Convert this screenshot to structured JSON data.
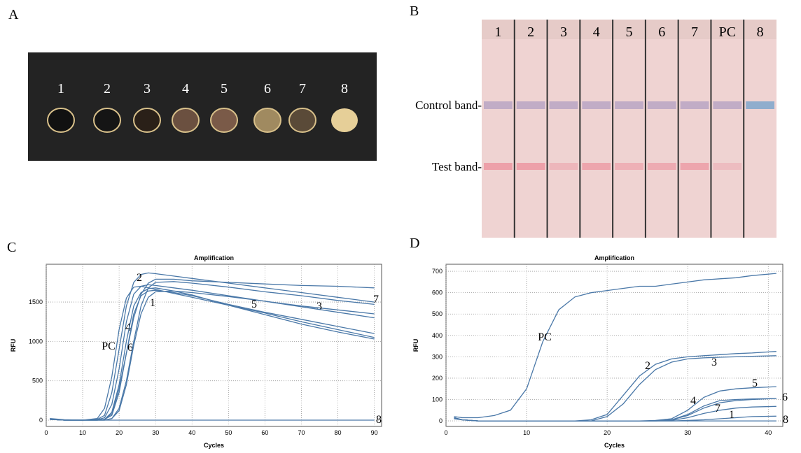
{
  "panel_labels": [
    "A",
    "B",
    "C",
    "D"
  ],
  "photo_a": {
    "seeds": [
      "1",
      "2",
      "3",
      "4",
      "5",
      "6",
      "7",
      "8"
    ]
  },
  "photo_b": {
    "lanes": [
      "1",
      "2",
      "3",
      "4",
      "5",
      "6",
      "7",
      "PC",
      "8"
    ],
    "bands": [
      "Control band-",
      "Test band-"
    ]
  },
  "chart_data": [
    {
      "type": "line",
      "title": "Amplification",
      "x_label": "Cycles",
      "y_label": "RFU",
      "color": "#4a78a8",
      "grid": true,
      "xlim": [
        0,
        92
      ],
      "ylim": [
        -80,
        1980
      ],
      "xticks": [
        0,
        10,
        20,
        30,
        40,
        50,
        60,
        70,
        80,
        90
      ],
      "yticks": [
        0,
        500,
        1000,
        1500
      ],
      "x": [
        1,
        5,
        10,
        14,
        16,
        18,
        20,
        22,
        24,
        26,
        28,
        30,
        35,
        40,
        50,
        60,
        70,
        80,
        90
      ],
      "series": [
        {
          "name": "PC",
          "values": [
            20,
            5,
            0,
            20,
            150,
            550,
            1150,
            1550,
            1690,
            1700,
            1680,
            1660,
            1610,
            1560,
            1460,
            1360,
            1250,
            1150,
            1050
          ]
        },
        {
          "name": "1",
          "values": [
            10,
            0,
            0,
            0,
            0,
            20,
            120,
            450,
            950,
            1350,
            1560,
            1630,
            1640,
            1620,
            1570,
            1510,
            1450,
            1400,
            1350
          ]
        },
        {
          "name": "2",
          "values": [
            10,
            0,
            0,
            10,
            60,
            350,
            900,
            1450,
            1750,
            1850,
            1870,
            1860,
            1830,
            1800,
            1740,
            1680,
            1620,
            1560,
            1500
          ]
        },
        {
          "name": "3",
          "values": [
            10,
            0,
            0,
            0,
            10,
            80,
            400,
            850,
            1300,
            1600,
            1740,
            1790,
            1790,
            1770,
            1750,
            1730,
            1710,
            1700,
            1680
          ]
        },
        {
          "name": "4",
          "values": [
            10,
            0,
            0,
            5,
            30,
            200,
            650,
            1250,
            1600,
            1700,
            1720,
            1710,
            1680,
            1650,
            1580,
            1510,
            1440,
            1370,
            1300
          ]
        },
        {
          "name": "5",
          "values": [
            10,
            0,
            0,
            0,
            10,
            100,
            450,
            1000,
            1450,
            1620,
            1670,
            1680,
            1640,
            1590,
            1460,
            1340,
            1220,
            1120,
            1030
          ]
        },
        {
          "name": "6",
          "values": [
            10,
            0,
            0,
            0,
            10,
            60,
            350,
            850,
            1350,
            1580,
            1640,
            1650,
            1620,
            1580,
            1470,
            1370,
            1280,
            1190,
            1100
          ]
        },
        {
          "name": "7",
          "values": [
            10,
            0,
            0,
            0,
            0,
            20,
            150,
            500,
            1000,
            1450,
            1680,
            1750,
            1760,
            1740,
            1690,
            1630,
            1580,
            1520,
            1470
          ]
        },
        {
          "name": "8",
          "values": [
            10,
            0,
            0,
            0,
            0,
            0,
            0,
            0,
            0,
            0,
            0,
            0,
            0,
            0,
            0,
            0,
            0,
            0,
            0
          ]
        }
      ]
    },
    {
      "type": "line",
      "title": "Amplification",
      "x_label": "Cycles",
      "y_label": "RFU",
      "color": "#4a78a8",
      "grid": true,
      "xlim": [
        0,
        41.8
      ],
      "ylim": [
        -26,
        733
      ],
      "xticks": [
        0,
        10,
        20,
        30,
        40
      ],
      "yticks": [
        0,
        100,
        200,
        300,
        400,
        500,
        600,
        700
      ],
      "x": [
        1,
        2,
        4,
        6,
        8,
        10,
        12,
        14,
        16,
        18,
        20,
        22,
        24,
        26,
        28,
        30,
        32,
        34,
        36,
        38,
        41
      ],
      "series": [
        {
          "name": "PC",
          "values": [
            20,
            15,
            15,
            25,
            50,
            150,
            370,
            520,
            580,
            600,
            610,
            620,
            630,
            630,
            640,
            650,
            660,
            665,
            670,
            680,
            690
          ]
        },
        {
          "name": "1",
          "values": [
            15,
            5,
            0,
            0,
            0,
            0,
            0,
            0,
            0,
            0,
            0,
            0,
            0,
            0,
            0,
            2,
            5,
            10,
            15,
            20,
            22
          ]
        },
        {
          "name": "2",
          "values": [
            15,
            5,
            0,
            0,
            0,
            0,
            0,
            0,
            0,
            5,
            30,
            120,
            210,
            265,
            290,
            300,
            305,
            310,
            315,
            318,
            325
          ]
        },
        {
          "name": "3",
          "values": [
            10,
            5,
            0,
            0,
            0,
            0,
            0,
            0,
            0,
            0,
            20,
            80,
            170,
            240,
            275,
            290,
            295,
            298,
            300,
            302,
            305
          ]
        },
        {
          "name": "4",
          "values": [
            15,
            5,
            0,
            0,
            0,
            0,
            0,
            0,
            0,
            0,
            0,
            0,
            0,
            0,
            5,
            25,
            60,
            85,
            95,
            100,
            105
          ]
        },
        {
          "name": "5",
          "values": [
            15,
            5,
            0,
            0,
            0,
            0,
            0,
            0,
            0,
            0,
            0,
            0,
            0,
            2,
            10,
            50,
            110,
            140,
            150,
            155,
            160
          ]
        },
        {
          "name": "6",
          "values": [
            15,
            5,
            0,
            0,
            0,
            0,
            0,
            0,
            0,
            0,
            0,
            0,
            0,
            0,
            5,
            30,
            70,
            95,
            100,
            103,
            105
          ]
        },
        {
          "name": "7",
          "values": [
            15,
            5,
            0,
            0,
            0,
            0,
            0,
            0,
            0,
            0,
            0,
            0,
            0,
            0,
            2,
            15,
            35,
            50,
            60,
            65,
            68
          ]
        },
        {
          "name": "8",
          "values": [
            10,
            5,
            0,
            0,
            0,
            0,
            0,
            0,
            0,
            0,
            0,
            0,
            0,
            0,
            0,
            0,
            0,
            0,
            0,
            0,
            0
          ]
        }
      ]
    }
  ]
}
